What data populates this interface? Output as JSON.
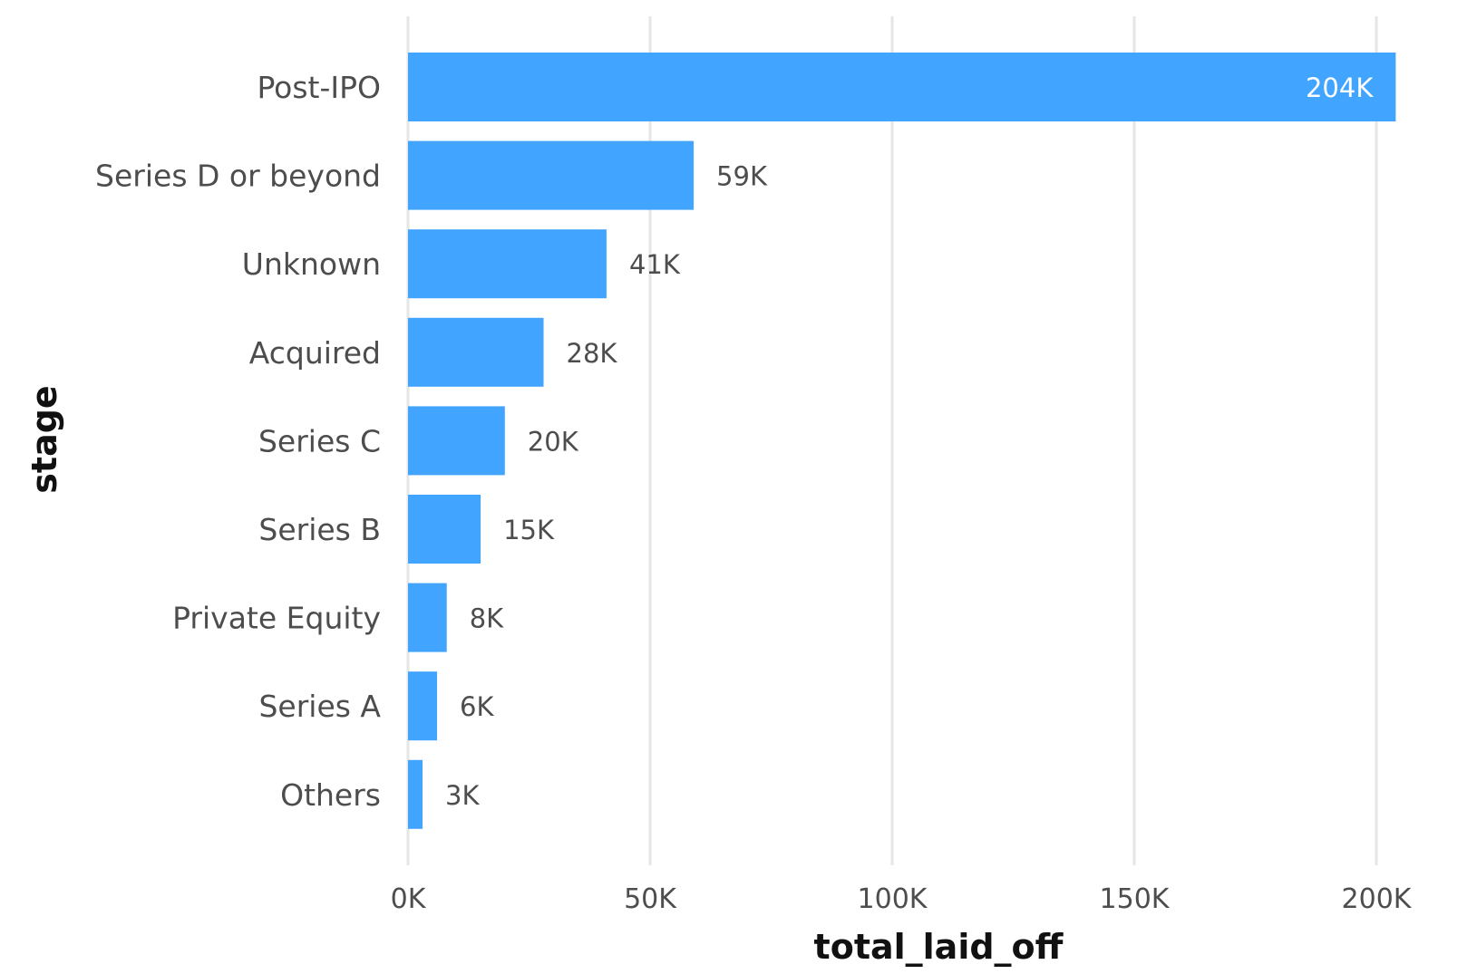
{
  "chart_data": {
    "type": "bar",
    "orientation": "horizontal",
    "categories": [
      "Post-IPO",
      "Series D or beyond",
      "Unknown",
      "Acquired",
      "Series C",
      "Series B",
      "Private Equity",
      "Series A",
      "Others"
    ],
    "values": [
      204000,
      59000,
      41000,
      28000,
      20000,
      15000,
      8000,
      6000,
      3000
    ],
    "data_labels": [
      "204K",
      "59K",
      "41K",
      "28K",
      "20K",
      "15K",
      "8K",
      "6K",
      "3K"
    ],
    "xlabel": "total_laid_off",
    "ylabel": "stage",
    "xlim": [
      0,
      200000
    ],
    "x_ticks": [
      0,
      50000,
      100000,
      150000,
      200000
    ],
    "x_tick_labels": [
      "0K",
      "50K",
      "100K",
      "150K",
      "200K"
    ],
    "grid": "vertical-major",
    "legend": "none",
    "bar_color": "#41a5ff"
  }
}
